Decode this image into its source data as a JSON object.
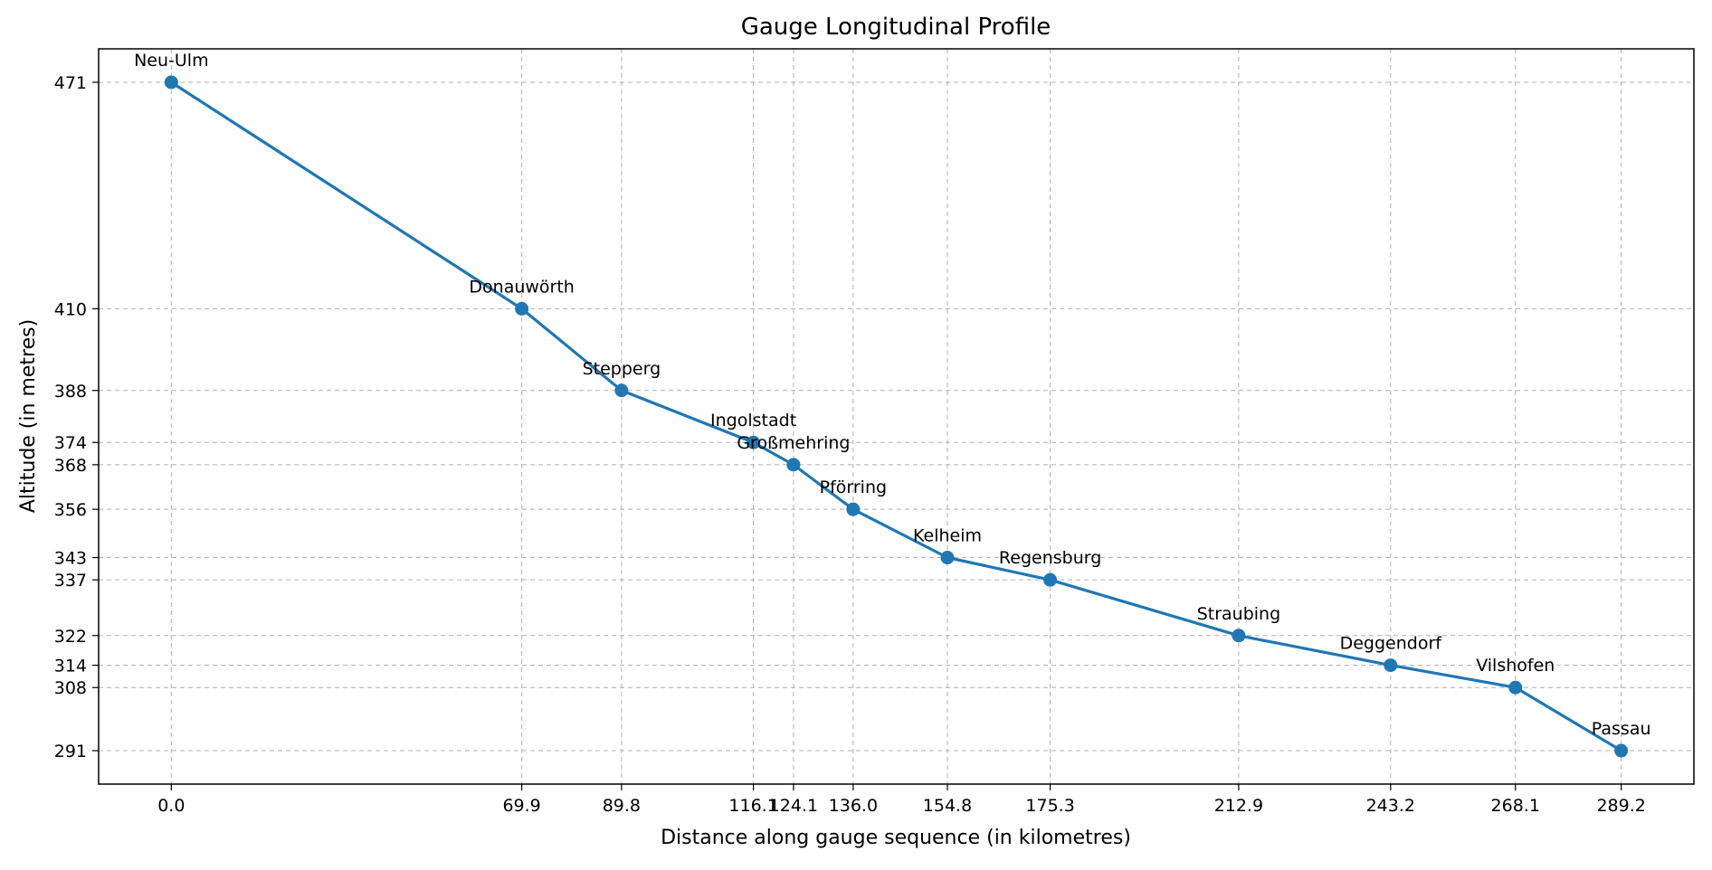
{
  "chart_data": {
    "type": "line",
    "title": "Gauge Longitudinal Profile",
    "xlabel": "Distance along gauge sequence (in kilometres)",
    "ylabel": "Altitude (in metres)",
    "xlim": [
      -14.5,
      303.7
    ],
    "ylim": [
      282,
      480
    ],
    "grid": true,
    "legend": "none",
    "color": "#1f77b4",
    "x_ticks": [
      "0.0",
      "69.9",
      "89.8",
      "116.1",
      "124.1",
      "136.0",
      "154.8",
      "175.3",
      "212.9",
      "243.2",
      "268.1",
      "289.2"
    ],
    "y_ticks": [
      "291",
      "308",
      "314",
      "322",
      "337",
      "343",
      "356",
      "368",
      "374",
      "388",
      "410",
      "471"
    ],
    "points": [
      {
        "label": "Neu-Ulm",
        "x": 0.0,
        "y": 471
      },
      {
        "label": "Donauwörth",
        "x": 69.9,
        "y": 410
      },
      {
        "label": "Stepperg",
        "x": 89.8,
        "y": 388
      },
      {
        "label": "Ingolstadt",
        "x": 116.1,
        "y": 374
      },
      {
        "label": "Großmehring",
        "x": 124.1,
        "y": 368
      },
      {
        "label": "Pförring",
        "x": 136.0,
        "y": 356
      },
      {
        "label": "Kelheim",
        "x": 154.8,
        "y": 343
      },
      {
        "label": "Regensburg",
        "x": 175.3,
        "y": 337
      },
      {
        "label": "Straubing",
        "x": 212.9,
        "y": 322
      },
      {
        "label": "Deggendorf",
        "x": 243.2,
        "y": 314
      },
      {
        "label": "Vilshofen",
        "x": 268.1,
        "y": 308
      },
      {
        "label": "Passau",
        "x": 289.2,
        "y": 291
      }
    ]
  }
}
